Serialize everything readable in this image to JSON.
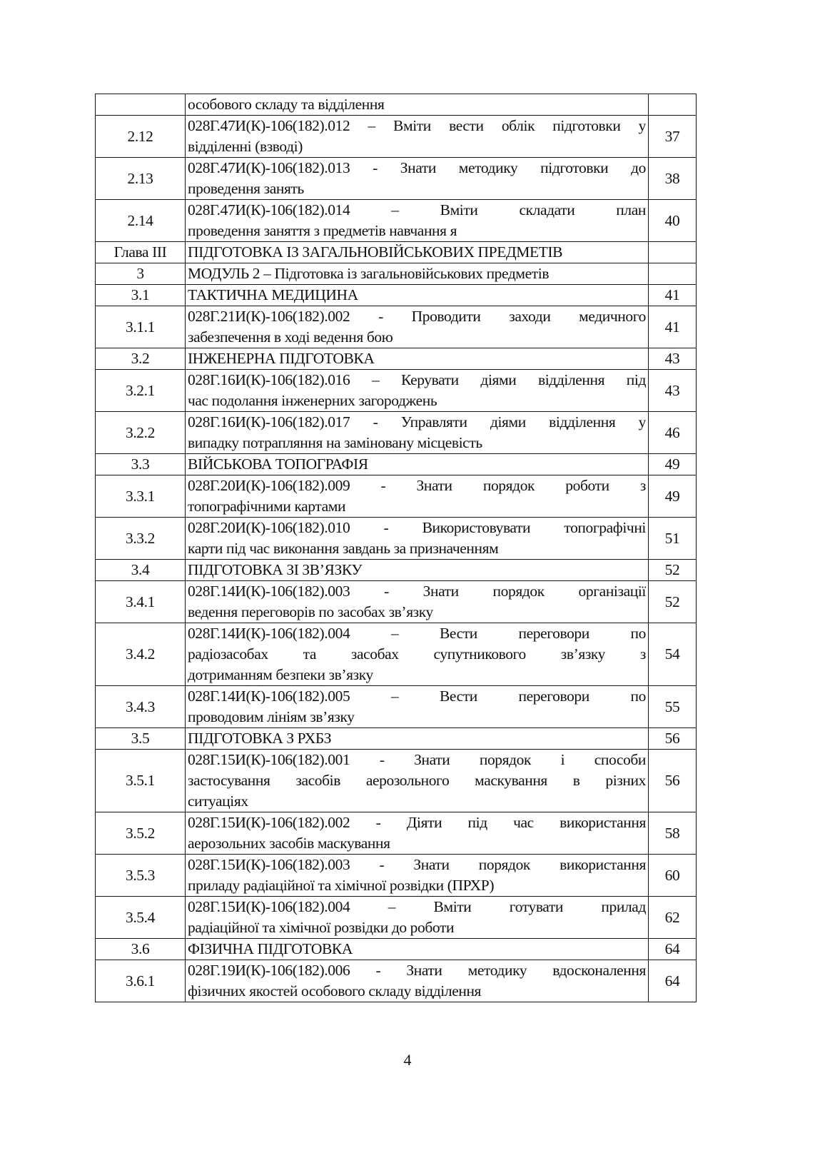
{
  "rows": [
    {
      "num": "",
      "lines": [
        "особового складу та відділення"
      ],
      "page": ""
    },
    {
      "num": "2.12",
      "lines": [
        "028Г.47И(К)-106(182).012 – Вміти вести облік підготовки у",
        "відділенні (взводі)"
      ],
      "page": "37"
    },
    {
      "num": "2.13",
      "lines": [
        "028Г.47И(К)-106(182).013 - Знати методику підготовки до",
        "проведення занять"
      ],
      "page": "38"
    },
    {
      "num": "2.14",
      "lines": [
        "028Г.47И(К)-106(182).014 – Вміти складати план",
        "проведення заняття з предметів навчання я"
      ],
      "page": "40"
    },
    {
      "num": "Глава III",
      "lines": [
        "ПІДГОТОВКА ІЗ ЗАГАЛЬНОВІЙСЬКОВИХ ПРЕДМЕТІВ"
      ],
      "page": ""
    },
    {
      "num": "3",
      "lines": [
        "МОДУЛЬ 2 – Підготовка із загальновійськових предметів"
      ],
      "page": ""
    },
    {
      "num": "3.1",
      "lines": [
        "ТАКТИЧНА МЕДИЦИНА"
      ],
      "page": "41"
    },
    {
      "num": "3.1.1",
      "lines": [
        "028Г.21И(К)-106(182).002 - Проводити заходи медичного",
        "забезпечення в ході ведення бою"
      ],
      "page": "41"
    },
    {
      "num": "3.2",
      "lines": [
        "ІНЖЕНЕРНА ПІДГОТОВКА"
      ],
      "page": "43"
    },
    {
      "num": "3.2.1",
      "lines": [
        "028Г.16И(К)-106(182).016 – Керувати діями відділення під",
        "час подолання інженерних загороджень"
      ],
      "page": "43"
    },
    {
      "num": "3.2.2",
      "lines": [
        "028Г.16И(К)-106(182).017 - Управляти діями відділення у",
        "випадку потрапляння на заміновану місцевість"
      ],
      "page": "46"
    },
    {
      "num": "3.3",
      "lines": [
        "ВІЙСЬКОВА ТОПОГРАФІЯ"
      ],
      "page": "49"
    },
    {
      "num": "3.3.1",
      "lines": [
        "028Г.20И(К)-106(182).009 - Знати порядок роботи з",
        "топографічними картами"
      ],
      "page": "49"
    },
    {
      "num": "3.3.2",
      "lines": [
        "028Г.20И(К)-106(182).010 - Використовувати топографічні",
        "карти під час виконання завдань за призначенням"
      ],
      "page": "51"
    },
    {
      "num": "3.4",
      "lines": [
        "ПІДГОТОВКА ЗІ ЗВ’ЯЗКУ"
      ],
      "page": "52"
    },
    {
      "num": "3.4.1",
      "lines": [
        "028Г.14И(К)-106(182).003 - Знати порядок організації",
        "ведення переговорів по засобах зв’язку"
      ],
      "page": "52"
    },
    {
      "num": "3.4.2",
      "lines": [
        "028Г.14И(К)-106(182).004 – Вести переговори по",
        "радіозасобах та засобах супутникового зв’язку з",
        "дотриманням безпеки зв’язку"
      ],
      "page": "54"
    },
    {
      "num": "3.4.3",
      "lines": [
        "028Г.14И(К)-106(182).005 – Вести переговори по",
        "проводовим лініям зв’язку"
      ],
      "page": "55"
    },
    {
      "num": "3.5",
      "lines": [
        "ПІДГОТОВКА З РХБЗ"
      ],
      "page": "56"
    },
    {
      "num": "3.5.1",
      "lines": [
        "028Г.15И(К)-106(182).001 - Знати порядок і способи",
        "застосування засобів аерозольного маскування в різних",
        "ситуаціях"
      ],
      "page": "56"
    },
    {
      "num": "3.5.2",
      "lines": [
        "028Г.15И(К)-106(182).002 - Діяти під час використання",
        "аерозольних засобів маскування"
      ],
      "page": "58"
    },
    {
      "num": "3.5.3",
      "lines": [
        "028Г.15И(К)-106(182).003 - Знати порядок використання",
        "приладу радіаційної та хімічної розвідки (ПРХР)"
      ],
      "page": "60"
    },
    {
      "num": "3.5.4",
      "lines": [
        "028Г.15И(К)-106(182).004 – Вміти готувати прилад",
        "радіаційної та хімічної розвідки до роботи"
      ],
      "page": "62"
    },
    {
      "num": "3.6",
      "lines": [
        "ФІЗИЧНА ПІДГОТОВКА"
      ],
      "page": "64"
    },
    {
      "num": "3.6.1",
      "lines": [
        "028Г.19И(К)-106(182).006 - Знати методику вдосконалення",
        "фізичних якостей особового складу відділення"
      ],
      "page": "64"
    }
  ],
  "page_number": "4"
}
